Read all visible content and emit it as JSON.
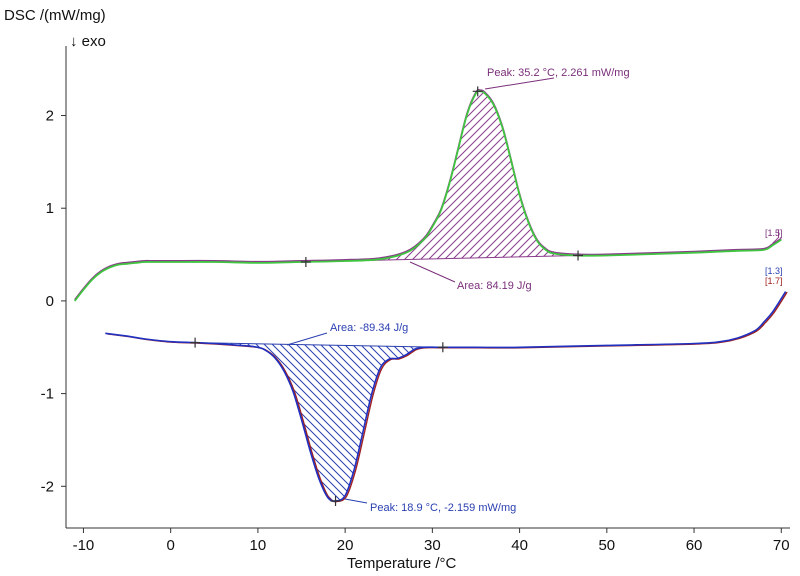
{
  "chart_data": {
    "type": "line",
    "ylabel": "DSC /(mW/mg)",
    "y_direction_note": "↓ exo",
    "xlabel": "Temperature /°C",
    "xlim": [
      -12,
      71
    ],
    "ylim": [
      -2.45,
      2.75
    ],
    "x_ticks": [
      "-10",
      "0",
      "10",
      "20",
      "30",
      "40",
      "50",
      "60",
      "70"
    ],
    "y_ticks": [
      "2",
      "1",
      "0",
      "-1",
      "-2"
    ],
    "colors": {
      "heating_green": "#3fc53f",
      "heating_purple": "#8a3a8a",
      "cooling_blue": "#2030c0",
      "cooling_red": "#a02020",
      "hatch_purple": "#8a3a8a",
      "hatch_blue": "#2a3fb0"
    },
    "series": [
      {
        "x": [
          -11,
          -10,
          -9,
          -8,
          -7,
          -6,
          -5,
          -4,
          -3,
          -2,
          0,
          5,
          10,
          15,
          20,
          24,
          27,
          29,
          30,
          31,
          32,
          33,
          34,
          35,
          35.5,
          36,
          37,
          38,
          39,
          40,
          41,
          42,
          43,
          44,
          46.7,
          50,
          60,
          65,
          68,
          69,
          70
        ],
        "y": [
          0.0,
          0.12,
          0.23,
          0.31,
          0.36,
          0.39,
          0.4,
          0.41,
          0.42,
          0.42,
          0.42,
          0.42,
          0.41,
          0.42,
          0.43,
          0.45,
          0.52,
          0.66,
          0.8,
          0.98,
          1.28,
          1.65,
          2.02,
          2.24,
          2.26,
          2.24,
          2.12,
          1.88,
          1.52,
          1.14,
          0.85,
          0.65,
          0.55,
          0.51,
          0.49,
          0.49,
          0.52,
          0.54,
          0.55,
          0.6,
          0.66
        ]
      },
      {
        "x": [
          -7.5,
          -5,
          -3,
          0,
          2.8,
          5,
          8,
          10,
          11,
          12,
          13,
          14,
          15,
          16,
          17,
          18,
          18.9,
          20,
          21,
          22,
          23,
          24,
          25,
          26,
          27,
          28,
          29,
          31,
          35,
          40,
          50,
          60,
          63,
          65,
          67,
          68,
          69,
          70.5
        ],
        "y": [
          -0.35,
          -0.38,
          -0.41,
          -0.44,
          -0.45,
          -0.46,
          -0.48,
          -0.5,
          -0.54,
          -0.62,
          -0.76,
          -0.97,
          -1.28,
          -1.62,
          -1.92,
          -2.12,
          -2.159,
          -2.1,
          -1.83,
          -1.43,
          -1.02,
          -0.73,
          -0.63,
          -0.62,
          -0.58,
          -0.52,
          -0.5,
          -0.5,
          -0.5,
          -0.5,
          -0.48,
          -0.46,
          -0.44,
          -0.4,
          -0.32,
          -0.23,
          -0.12,
          0.1
        ]
      }
    ],
    "annotations": {
      "heating_peak": {
        "text": "Peak: 35.2 °C, 2.261 mW/mg",
        "x": 35.2,
        "y": 2.261
      },
      "heating_area": {
        "text": "Area: 84.19 J/g"
      },
      "heating_baseline_start": {
        "x": 15.5,
        "y": 0.42
      },
      "heating_baseline_end": {
        "x": 46.7,
        "y": 0.49
      },
      "cooling_peak": {
        "text": "Peak: 18.9 °C, -2.159 mW/mg",
        "x": 18.9,
        "y": -2.159
      },
      "cooling_area": {
        "text": "Area: -89.34 J/g"
      },
      "cooling_baseline_start": {
        "x": 2.8,
        "y": -0.45
      },
      "cooling_baseline_end": {
        "x": 31.2,
        "y": -0.5
      },
      "label_15": "[1.5]",
      "label_13": "[1.3]",
      "label_17": "[1.7]"
    }
  }
}
